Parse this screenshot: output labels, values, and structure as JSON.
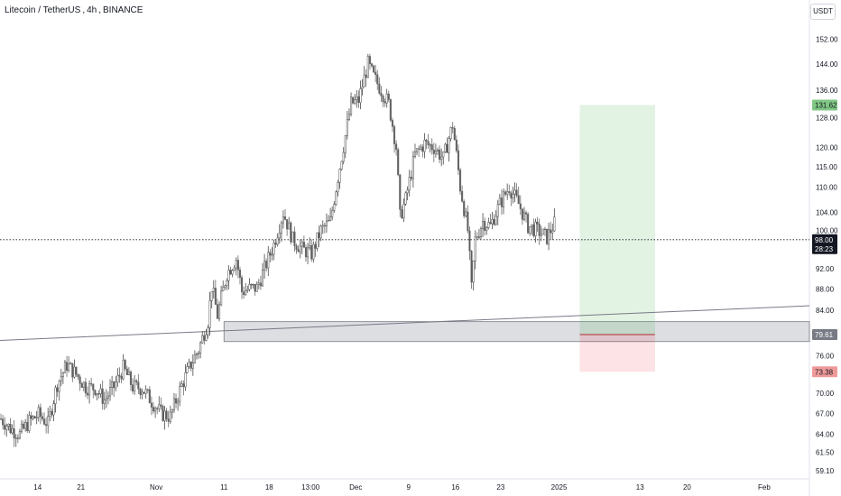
{
  "header": {
    "symbol": "Litecoin / TetherUS",
    "interval": "4h",
    "exchange": "BINANCE",
    "currency": "USDT"
  },
  "colors": {
    "candle_up": "#4a4a4a",
    "candle_down": "#6b6b6b",
    "up_body": "#5e5e5e",
    "price_line": "#131722",
    "zone_fill": "#b2b5be",
    "target_fill": "#4caf50",
    "stop_fill": "#f23645",
    "target_label_bg": "#81c784",
    "stop_label_bg": "#ef9a9a",
    "entry_label_bg": "#787b86",
    "trendline": "#787b86"
  },
  "chart_data": {
    "type": "candlestick",
    "x_tick_labels": [
      "14",
      "21",
      "Nov",
      "11",
      "18",
      "13:00",
      "Dec",
      "9",
      "16",
      "23",
      "2025",
      "13",
      "20",
      "Feb"
    ],
    "y_tick_values": [
      59.1,
      61.5,
      64.0,
      67.0,
      70.0,
      76.0,
      84.0,
      88.0,
      92.0,
      100.0,
      104.0,
      110.0,
      115.0,
      120.0,
      128.0,
      136.0,
      144.0,
      152.0
    ],
    "y_tick_labels": [
      "59.10",
      "61.50",
      "64.00",
      "67.00",
      "70.00",
      "76.00",
      "84.00",
      "88.00",
      "92.00",
      "100.00",
      "104.00",
      "110.00",
      "115.00",
      "120.00",
      "128.00",
      "136.00",
      "144.00",
      "152.00"
    ],
    "y_scale": "log",
    "y_range": [
      58.5,
      158
    ],
    "close_path": [
      [
        0,
        66.2
      ],
      [
        5,
        64.8
      ],
      [
        10,
        64.0
      ],
      [
        15,
        65.8
      ],
      [
        20,
        66.8
      ],
      [
        25,
        65.5
      ],
      [
        30,
        71.5
      ],
      [
        35,
        74.5
      ],
      [
        40,
        73.0
      ],
      [
        45,
        71.0
      ],
      [
        50,
        70.8
      ],
      [
        55,
        69.0
      ],
      [
        60,
        71.0
      ],
      [
        65,
        74.0
      ],
      [
        70,
        71.0
      ],
      [
        75,
        70.8
      ],
      [
        80,
        68.8
      ],
      [
        85,
        67.0
      ],
      [
        90,
        66.5
      ],
      [
        95,
        70.5
      ],
      [
        100,
        74.0
      ],
      [
        105,
        77.0
      ],
      [
        110,
        82.0
      ],
      [
        112,
        88.5
      ],
      [
        115,
        83.0
      ],
      [
        120,
        91.0
      ],
      [
        125,
        94.0
      ],
      [
        128,
        87.5
      ],
      [
        132,
        88.0
      ],
      [
        136,
        88.2
      ],
      [
        140,
        92.0
      ],
      [
        145,
        97.0
      ],
      [
        150,
        104.0
      ],
      [
        155,
        98.0
      ],
      [
        160,
        96.0
      ],
      [
        165,
        95.0
      ],
      [
        170,
        100.0
      ],
      [
        175,
        102.0
      ],
      [
        180,
        115.0
      ],
      [
        183,
        123.0
      ],
      [
        186,
        132.0
      ],
      [
        190,
        133.0
      ],
      [
        195,
        144.0
      ],
      [
        198,
        140.0
      ],
      [
        202,
        136.0
      ],
      [
        206,
        132.0
      ],
      [
        210,
        120.0
      ],
      [
        212,
        103.0
      ],
      [
        215,
        107.0
      ],
      [
        220,
        118.0
      ],
      [
        225,
        121.0
      ],
      [
        230,
        120.0
      ],
      [
        235,
        117.0
      ],
      [
        240,
        126.0
      ],
      [
        244,
        110.0
      ],
      [
        248,
        100.0
      ],
      [
        250,
        88.0
      ],
      [
        252,
        98.0
      ],
      [
        256,
        102.0
      ],
      [
        260,
        101.0
      ],
      [
        265,
        106.0
      ],
      [
        270,
        110.0
      ],
      [
        275,
        106.0
      ],
      [
        280,
        101.0
      ],
      [
        285,
        100.0
      ],
      [
        290,
        98.5
      ],
      [
        294,
        101.5
      ]
    ],
    "x_total_units": 430,
    "last_price": 98.0,
    "countdown": "28:23",
    "support_zone": {
      "low": 78.4,
      "high": 81.9,
      "x_start": 119,
      "x_end": 430
    },
    "trendline": {
      "x0": 0,
      "y0": 78.6,
      "x1": 430,
      "y1": 84.8
    },
    "long_position": {
      "entry": 79.61,
      "target": 131.62,
      "stop": 73.38,
      "x_start": 308,
      "x_end": 348
    },
    "price_tags": {
      "target": "131.62",
      "entry": "79.61",
      "stop": "73.38",
      "last": "98.00"
    }
  }
}
